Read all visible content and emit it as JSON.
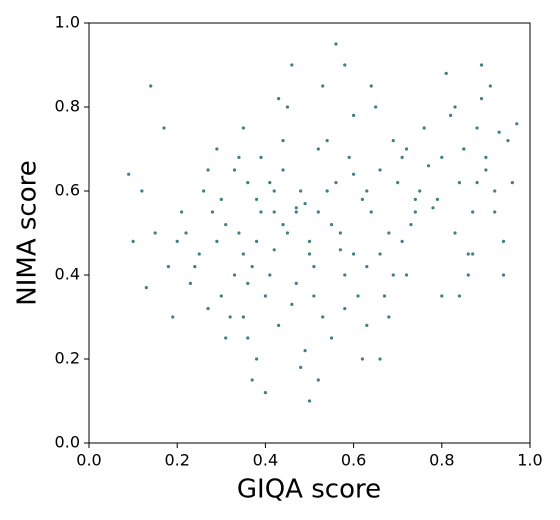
{
  "chart_data": {
    "type": "scatter",
    "xlabel": "GIQA score",
    "ylabel": "NIMA score",
    "color": "#3d8088",
    "xlim": [
      0,
      1
    ],
    "ylim": [
      0,
      1
    ],
    "xticks": [
      {
        "value": 0,
        "label": "0.0"
      },
      0.2,
      0.4,
      0.6,
      0.8,
      {
        "value": 1,
        "label": "1.0"
      }
    ],
    "yticks": [
      {
        "value": 0,
        "label": "0.0"
      },
      0.2,
      0.4,
      0.6,
      0.8,
      {
        "value": 1,
        "label": "1.0"
      }
    ],
    "x": [
      0.31,
      0.35,
      0.38,
      0.33,
      0.42,
      0.29,
      0.36,
      0.4,
      0.34,
      0.37,
      0.45,
      0.48,
      0.52,
      0.5,
      0.47,
      0.55,
      0.44,
      0.53,
      0.49,
      0.51,
      0.62,
      0.66,
      0.7,
      0.68,
      0.72,
      0.64,
      0.75,
      0.6,
      0.69,
      0.73,
      0.85,
      0.88,
      0.9,
      0.82,
      0.92,
      0.87,
      0.95,
      0.8,
      0.89,
      0.84,
      0.25,
      0.28,
      0.22,
      0.3,
      0.26,
      0.32,
      0.24,
      0.27,
      0.2,
      0.23,
      0.39,
      0.43,
      0.41,
      0.46,
      0.36,
      0.44,
      0.38,
      0.42,
      0.35,
      0.47,
      0.56,
      0.58,
      0.54,
      0.61,
      0.57,
      0.59,
      0.63,
      0.55,
      0.6,
      0.52,
      0.65,
      0.67,
      0.71,
      0.74,
      0.77,
      0.63,
      0.69,
      0.76,
      0.66,
      0.78,
      0.81,
      0.83,
      0.86,
      0.91,
      0.93,
      0.79,
      0.94,
      0.97,
      0.88,
      0.84,
      0.15,
      0.18,
      0.12,
      0.1,
      0.09,
      0.17,
      0.14,
      0.19,
      0.21,
      0.13,
      0.33,
      0.37,
      0.31,
      0.48,
      0.5,
      0.45,
      0.53,
      0.4,
      0.58,
      0.62,
      0.68,
      0.72,
      0.56,
      0.46,
      0.43,
      0.51,
      0.35,
      0.39,
      0.29,
      0.64,
      0.87,
      0.9,
      0.83,
      0.92,
      0.96,
      0.86,
      0.8,
      0.89,
      0.94,
      0.85,
      0.3,
      0.34,
      0.41,
      0.49,
      0.54,
      0.6,
      0.66,
      0.71,
      0.44,
      0.38,
      0.52,
      0.47,
      0.58,
      0.36,
      0.27,
      0.63,
      0.74,
      0.57,
      0.42,
      0.5
    ],
    "values": [
      0.52,
      0.45,
      0.58,
      0.4,
      0.55,
      0.48,
      0.62,
      0.35,
      0.5,
      0.42,
      0.5,
      0.6,
      0.55,
      0.45,
      0.38,
      0.52,
      0.65,
      0.3,
      0.57,
      0.42,
      0.58,
      0.65,
      0.62,
      0.5,
      0.7,
      0.55,
      0.6,
      0.45,
      0.72,
      0.52,
      0.7,
      0.75,
      0.65,
      0.78,
      0.6,
      0.55,
      0.72,
      0.68,
      0.82,
      0.62,
      0.45,
      0.55,
      0.5,
      0.35,
      0.6,
      0.3,
      0.42,
      0.65,
      0.48,
      0.38,
      0.68,
      0.28,
      0.62,
      0.33,
      0.25,
      0.72,
      0.2,
      0.46,
      0.3,
      0.56,
      0.62,
      0.4,
      0.72,
      0.35,
      0.5,
      0.68,
      0.42,
      0.25,
      0.78,
      0.15,
      0.8,
      0.35,
      0.48,
      0.58,
      0.66,
      0.28,
      0.4,
      0.75,
      0.2,
      0.56,
      0.88,
      0.5,
      0.45,
      0.85,
      0.74,
      0.58,
      0.4,
      0.76,
      0.62,
      0.35,
      0.5,
      0.42,
      0.6,
      0.48,
      0.64,
      0.75,
      0.85,
      0.3,
      0.55,
      0.37,
      0.65,
      0.15,
      0.25,
      0.18,
      0.1,
      0.8,
      0.85,
      0.12,
      0.9,
      0.2,
      0.3,
      0.4,
      0.95,
      0.9,
      0.82,
      0.35,
      0.75,
      0.55,
      0.7,
      0.85,
      0.45,
      0.68,
      0.8,
      0.55,
      0.62,
      0.4,
      0.35,
      0.9,
      0.48,
      0.7,
      0.58,
      0.68,
      0.4,
      0.22,
      0.6,
      0.64,
      0.45,
      0.68,
      0.52,
      0.48,
      0.7,
      0.55,
      0.32,
      0.38,
      0.32,
      0.6,
      0.55,
      0.46,
      0.6,
      0.48
    ]
  }
}
